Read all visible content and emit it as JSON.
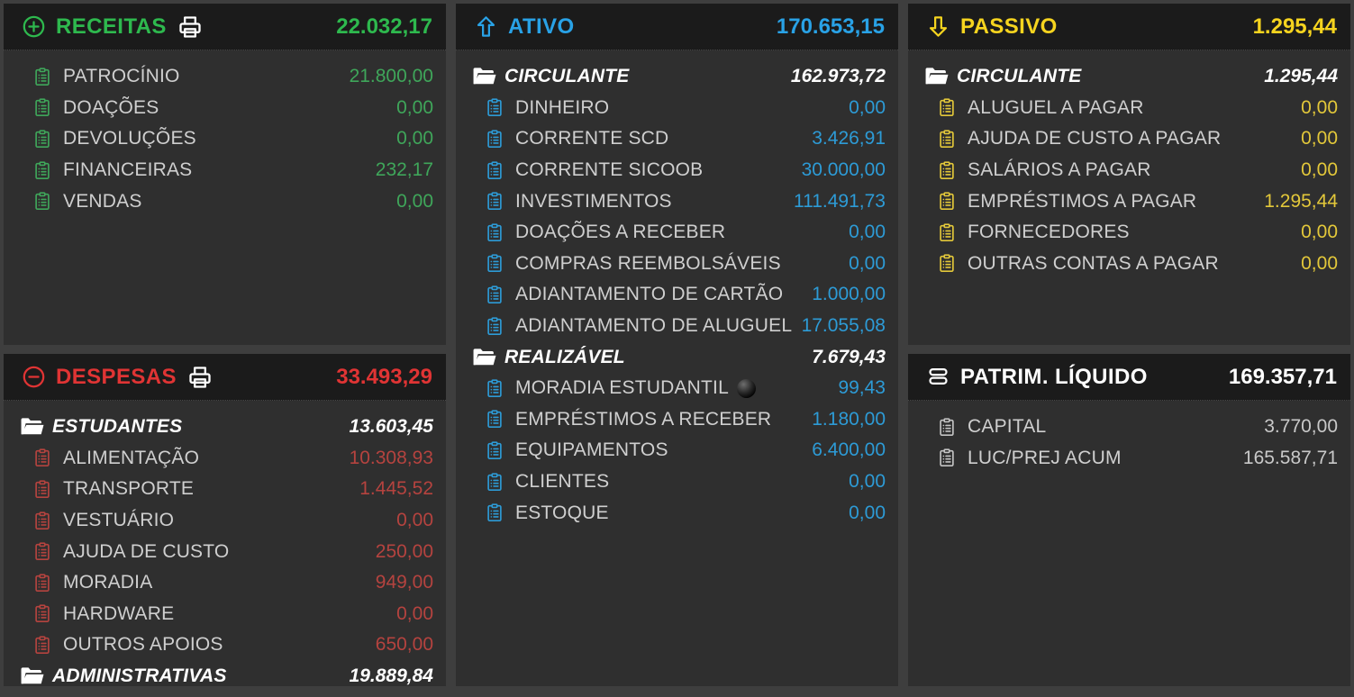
{
  "colors": {
    "page_bg": "#3e3e3e",
    "panel_bg": "#2f2f2f",
    "header_bg": "#1b1b1b",
    "label": "#cfcfcf",
    "green": "#2eb94e",
    "green_dim": "#3fa65a",
    "red": "#e03434",
    "red_dim": "#b5433f",
    "blue": "#29a2e6",
    "blue_dim": "#2d9bd6",
    "yellow": "#f6d41f",
    "yellow_dim": "#e3c83a"
  },
  "panels": {
    "receitas": {
      "title": "RECEITAS",
      "total": "22.032,17",
      "icon": "plus-circle-icon",
      "has_printer": true,
      "rows": [
        {
          "type": "item",
          "label": "PATROCÍNIO",
          "value": "21.800,00"
        },
        {
          "type": "item",
          "label": "DOAÇÕES",
          "value": "0,00"
        },
        {
          "type": "item",
          "label": "DEVOLUÇÕES",
          "value": "0,00"
        },
        {
          "type": "item",
          "label": "FINANCEIRAS",
          "value": "232,17"
        },
        {
          "type": "item",
          "label": "VENDAS",
          "value": "0,00"
        }
      ]
    },
    "despesas": {
      "title": "DESPESAS",
      "total": "33.493,29",
      "icon": "minus-circle-icon",
      "has_printer": true,
      "rows": [
        {
          "type": "folder",
          "label": "ESTUDANTES",
          "value": "13.603,45"
        },
        {
          "type": "item",
          "label": "ALIMENTAÇÃO",
          "value": "10.308,93"
        },
        {
          "type": "item",
          "label": "TRANSPORTE",
          "value": "1.445,52"
        },
        {
          "type": "item",
          "label": "VESTUÁRIO",
          "value": "0,00"
        },
        {
          "type": "item",
          "label": "AJUDA DE CUSTO",
          "value": "250,00"
        },
        {
          "type": "item",
          "label": "MORADIA",
          "value": "949,00"
        },
        {
          "type": "item",
          "label": "HARDWARE",
          "value": "0,00"
        },
        {
          "type": "item",
          "label": "OUTROS APOIOS",
          "value": "650,00"
        },
        {
          "type": "folder",
          "label": "ADMINISTRATIVAS",
          "value": "19.889,84"
        }
      ]
    },
    "ativo": {
      "title": "ATIVO",
      "total": "170.653,15",
      "icon": "arrow-up-icon",
      "rows": [
        {
          "type": "folder",
          "label": "CIRCULANTE",
          "value": "162.973,72"
        },
        {
          "type": "item",
          "label": "DINHEIRO",
          "value": "0,00"
        },
        {
          "type": "item",
          "label": "CORRENTE SCD",
          "value": "3.426,91"
        },
        {
          "type": "item",
          "label": "CORRENTE SICOOB",
          "value": "30.000,00"
        },
        {
          "type": "item",
          "label": "INVESTIMENTOS",
          "value": "111.491,73"
        },
        {
          "type": "item",
          "label": "DOAÇÕES A RECEBER",
          "value": "0,00"
        },
        {
          "type": "item",
          "label": "COMPRAS REEMBOLSÁVEIS",
          "value": "0,00"
        },
        {
          "type": "item",
          "label": "ADIANTAMENTO DE CARTÃO",
          "value": "1.000,00"
        },
        {
          "type": "item",
          "label": "ADIANTAMENTO DE ALUGUEL",
          "value": "17.055,08"
        },
        {
          "type": "folder",
          "label": "REALIZÁVEL",
          "value": "7.679,43"
        },
        {
          "type": "item",
          "label": "MORADIA ESTUDANTIL",
          "value": "99,43",
          "badge": "black-ball-icon"
        },
        {
          "type": "item",
          "label": "EMPRÉSTIMOS A RECEBER",
          "value": "1.180,00"
        },
        {
          "type": "item",
          "label": "EQUIPAMENTOS",
          "value": "6.400,00"
        },
        {
          "type": "item",
          "label": "CLIENTES",
          "value": "0,00"
        },
        {
          "type": "item",
          "label": "ESTOQUE",
          "value": "0,00"
        }
      ]
    },
    "passivo": {
      "title": "PASSIVO",
      "total": "1.295,44",
      "icon": "arrow-down-icon",
      "rows": [
        {
          "type": "folder",
          "label": "CIRCULANTE",
          "value": "1.295,44"
        },
        {
          "type": "item",
          "label": "ALUGUEL A PAGAR",
          "value": "0,00"
        },
        {
          "type": "item",
          "label": "AJUDA DE CUSTO A PAGAR",
          "value": "0,00"
        },
        {
          "type": "item",
          "label": "SALÁRIOS A PAGAR",
          "value": "0,00"
        },
        {
          "type": "item",
          "label": "EMPRÉSTIMOS A PAGAR",
          "value": "1.295,44"
        },
        {
          "type": "item",
          "label": "FORNECEDORES",
          "value": "0,00"
        },
        {
          "type": "item",
          "label": "OUTRAS CONTAS A PAGAR",
          "value": "0,00"
        }
      ]
    },
    "patrimonio": {
      "title": "PATRIM. LÍQUIDO",
      "total": "169.357,71",
      "icon": "stack-icon",
      "rows": [
        {
          "type": "item",
          "label": "CAPITAL",
          "value": "3.770,00"
        },
        {
          "type": "item",
          "label": "LUC/PREJ ACUM",
          "value": "165.587,71"
        }
      ]
    }
  }
}
